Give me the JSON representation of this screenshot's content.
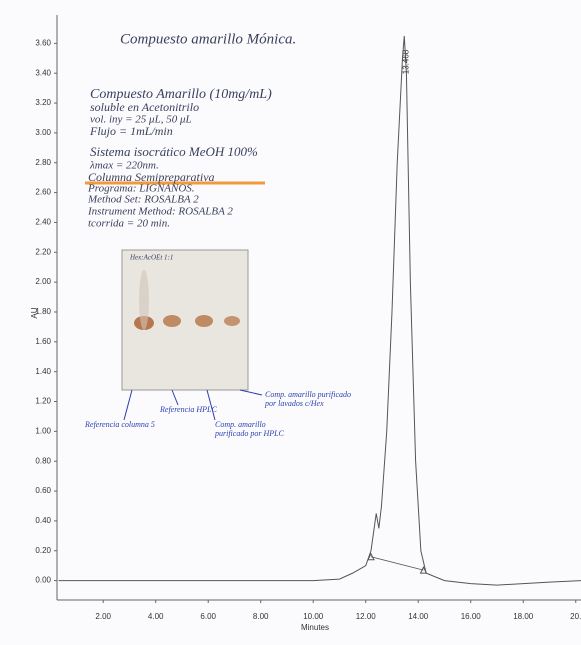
{
  "chart_data": {
    "type": "line",
    "x_label": "Minutes",
    "y_label": "AU",
    "xlim": [
      0.24,
      20.2
    ],
    "ylim": [
      -0.13,
      3.79
    ],
    "xticks": [
      {
        "value": 2,
        "label": "2.00"
      },
      {
        "value": 4,
        "label": "4.00"
      },
      {
        "value": 6,
        "label": "6.00"
      },
      {
        "value": 8,
        "label": "8.00"
      },
      {
        "value": 10,
        "label": "10.00"
      },
      {
        "value": 12,
        "label": "12.00"
      },
      {
        "value": 14,
        "label": "14.00"
      },
      {
        "value": 16,
        "label": "16.00"
      },
      {
        "value": 18,
        "label": "18.00"
      },
      {
        "value": 20,
        "label": "20."
      }
    ],
    "yticks": [
      {
        "value": 0,
        "label": "0.00"
      },
      {
        "value": 0.2,
        "label": "0.20"
      },
      {
        "value": 0.4,
        "label": "0.40"
      },
      {
        "value": 0.6,
        "label": "0.60"
      },
      {
        "value": 0.8,
        "label": "0.80"
      },
      {
        "value": 1,
        "label": "1.00"
      },
      {
        "value": 1.2,
        "label": "1.20"
      },
      {
        "value": 1.4,
        "label": "1.40"
      },
      {
        "value": 1.6,
        "label": "1.60"
      },
      {
        "value": 1.8,
        "label": "1.80"
      },
      {
        "value": 2,
        "label": "2.00"
      },
      {
        "value": 2.2,
        "label": "2.20"
      },
      {
        "value": 2.4,
        "label": "2.40"
      },
      {
        "value": 2.6,
        "label": "2.60"
      },
      {
        "value": 2.8,
        "label": "2.80"
      },
      {
        "value": 3,
        "label": "3.00"
      },
      {
        "value": 3.2,
        "label": "3.20"
      },
      {
        "value": 3.4,
        "label": "3.40"
      },
      {
        "value": 3.6,
        "label": "3.60"
      }
    ],
    "series": [
      {
        "name": "Compuesto amarillo",
        "color": "#555555",
        "x": [
          0.3,
          2,
          4,
          6,
          8,
          10,
          11,
          11.5,
          11.8,
          12.0,
          12.2,
          12.4,
          12.5,
          12.6,
          12.8,
          13.0,
          13.2,
          13.4,
          13.468,
          13.55,
          13.7,
          13.9,
          14.1,
          14.3,
          15,
          16,
          17,
          18,
          19,
          20.2
        ],
        "values": [
          0,
          0,
          0,
          0,
          0,
          0,
          0.01,
          0.05,
          0.08,
          0.1,
          0.2,
          0.45,
          0.35,
          0.5,
          1.0,
          1.8,
          2.8,
          3.5,
          3.65,
          3.4,
          2.0,
          0.8,
          0.2,
          0.05,
          0,
          -0.02,
          -0.03,
          -0.02,
          -0.01,
          0
        ]
      }
    ],
    "integration": {
      "x": [
        12.2,
        14.2
      ],
      "values": [
        0.16,
        0.07
      ]
    },
    "peak_label": {
      "x": 13.468,
      "text": "13.468"
    },
    "notes": [
      "Compuesto amarillo Mónica.",
      "Compuesto Amarillo (10mg/mL)",
      "soluble en Acetonitrilo",
      "vol. iny = 25 μL, 50 μL",
      "Flujo = 1mL/min",
      "Sistema isocrático MeOH 100%",
      "λmax = 220nm.",
      "Columna Semipreparativa",
      "Programa: LIGNANOS.",
      "Method Set: ROSALBA 2",
      "Instrument Method: ROSALBA 2",
      "tcorrida = 20 min."
    ],
    "plate_label": "Hex:AcOEt 1:1",
    "captions": [
      "Referencia columna 5",
      "Referencia HPLC",
      "Comp. amarillo purificado por HPLC",
      "Comp. amarillo purificado por lavados c/Hex"
    ]
  }
}
